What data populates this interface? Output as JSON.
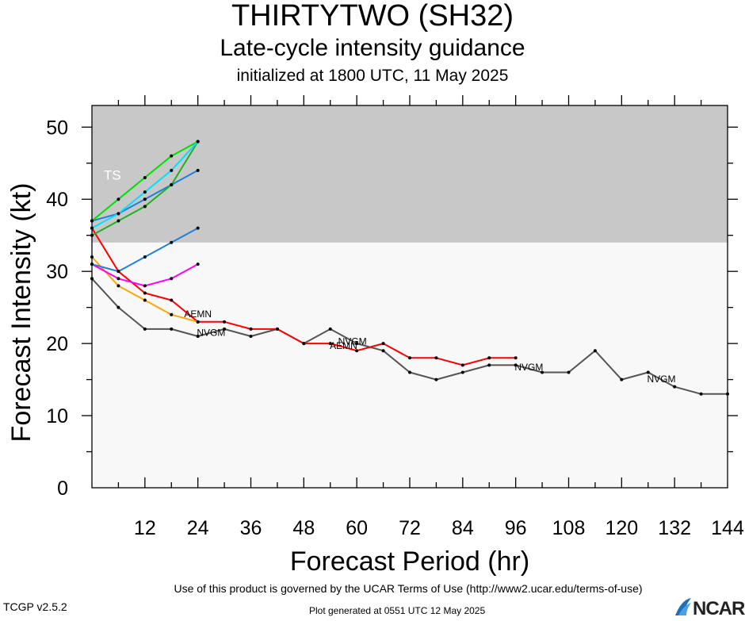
{
  "header": {
    "title": "THIRTYTWO (SH32)",
    "subtitle": "Late-cycle intensity guidance",
    "init_text": "initialized at 1800 UTC, 11 May 2025"
  },
  "footer": {
    "terms": "Use of this product is governed by the UCAR Terms of Use (http://www2.ucar.edu/terms-of-use)",
    "version": "TCGP v2.5.2",
    "generated": "Plot generated at 0551 UTC   12 May 2025",
    "logo_text": "NCAR"
  },
  "chart_data": {
    "type": "line",
    "xlabel": "Forecast Period (hr)",
    "ylabel": "Forecast Intensity (kt)",
    "xlim": [
      0,
      144
    ],
    "ylim": [
      0,
      53
    ],
    "x_ticks": [
      12,
      24,
      36,
      48,
      60,
      72,
      84,
      96,
      108,
      120,
      132,
      144
    ],
    "y_ticks": [
      0,
      10,
      20,
      30,
      40,
      50
    ],
    "band": {
      "label": "TS",
      "from": 34,
      "to": 53,
      "color": "#c8c8c8"
    },
    "plot_background": "#f8f8f8",
    "series": [
      {
        "color": "#555555",
        "label": "NVGM",
        "points": [
          [
            0,
            29
          ],
          [
            6,
            25
          ],
          [
            12,
            22
          ],
          [
            18,
            22
          ],
          [
            24,
            21
          ],
          [
            30,
            22
          ],
          [
            36,
            21
          ],
          [
            42,
            22
          ],
          [
            48,
            20
          ],
          [
            54,
            22
          ],
          [
            60,
            20
          ],
          [
            66,
            19
          ],
          [
            72,
            16
          ],
          [
            78,
            15
          ],
          [
            84,
            16
          ],
          [
            90,
            17
          ],
          [
            96,
            17
          ],
          [
            102,
            16
          ],
          [
            108,
            16
          ],
          [
            114,
            19
          ],
          [
            120,
            15
          ],
          [
            126,
            16
          ],
          [
            132,
            14
          ],
          [
            138,
            13
          ],
          [
            144,
            13
          ]
        ],
        "labels": [
          {
            "x": 27,
            "y": 21.4,
            "text": "NVGM"
          },
          {
            "x": 59,
            "y": 20.2,
            "text": "NVGM"
          },
          {
            "x": 99,
            "y": 16.6,
            "text": "NVGM"
          },
          {
            "x": 129,
            "y": 15.0,
            "text": "NVGM"
          }
        ]
      },
      {
        "color": "#ff0000",
        "label": "AEMN",
        "points": [
          [
            0,
            36
          ],
          [
            6,
            30
          ],
          [
            12,
            27
          ],
          [
            18,
            26
          ],
          [
            24,
            23
          ],
          [
            30,
            23
          ],
          [
            36,
            22
          ],
          [
            42,
            22
          ],
          [
            48,
            20
          ],
          [
            54,
            20
          ],
          [
            60,
            19
          ],
          [
            66,
            20
          ],
          [
            72,
            18
          ],
          [
            78,
            18
          ],
          [
            84,
            17
          ],
          [
            90,
            18
          ],
          [
            96,
            18
          ]
        ],
        "labels": [
          {
            "x": 24,
            "y": 24.0,
            "text": "AEMN"
          },
          {
            "x": 57,
            "y": 19.6,
            "text": "AEMN"
          }
        ]
      },
      {
        "color": "#ffa500",
        "label": "",
        "points": [
          [
            0,
            32
          ],
          [
            6,
            28
          ],
          [
            12,
            26
          ],
          [
            18,
            24
          ],
          [
            24,
            23
          ]
        ],
        "labels": []
      },
      {
        "color": "#ff00ff",
        "label": "",
        "points": [
          [
            0,
            31
          ],
          [
            6,
            29
          ],
          [
            12,
            28
          ],
          [
            18,
            29
          ],
          [
            24,
            31
          ]
        ],
        "labels": []
      },
      {
        "color": "#1e7fe0",
        "label": "",
        "points": [
          [
            0,
            31
          ],
          [
            6,
            30
          ],
          [
            12,
            32
          ],
          [
            18,
            34
          ],
          [
            24,
            36
          ]
        ],
        "labels": []
      },
      {
        "color": "#1e7fe0",
        "label": "",
        "points": [
          [
            0,
            37
          ],
          [
            6,
            38
          ],
          [
            12,
            40
          ],
          [
            18,
            42
          ],
          [
            24,
            44
          ]
        ],
        "labels": []
      },
      {
        "color": "#20b020",
        "label": "",
        "points": [
          [
            0,
            35
          ],
          [
            6,
            37
          ],
          [
            12,
            39
          ],
          [
            18,
            42
          ],
          [
            24,
            48
          ]
        ],
        "labels": []
      },
      {
        "color": "#00e000",
        "label": "",
        "points": [
          [
            0,
            37
          ],
          [
            6,
            40
          ],
          [
            12,
            43
          ],
          [
            18,
            46
          ],
          [
            24,
            48
          ]
        ],
        "labels": []
      },
      {
        "color": "#00e0ff",
        "label": "",
        "points": [
          [
            0,
            36
          ],
          [
            6,
            38
          ],
          [
            12,
            41
          ],
          [
            18,
            44
          ],
          [
            24,
            48
          ]
        ],
        "labels": []
      }
    ]
  }
}
